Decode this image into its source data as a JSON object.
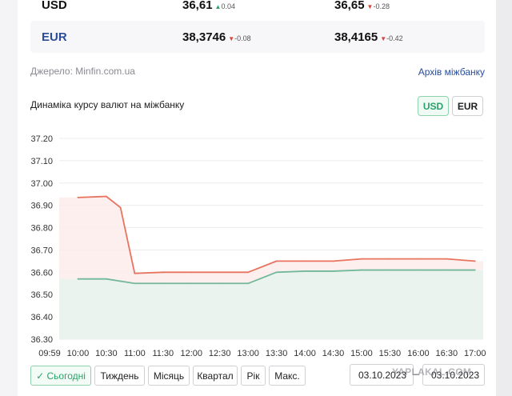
{
  "rates": {
    "usd": {
      "code": "USD",
      "buy": "36,61",
      "buy_change": "0.04",
      "sell": "36,65",
      "sell_change": "-0.28"
    },
    "eur": {
      "code": "EUR",
      "buy": "38,3746",
      "buy_change": "-0.08",
      "sell": "38,4165",
      "sell_change": "-0.42"
    }
  },
  "source_label": "Джерело: Minfin.com.ua",
  "archive_link": "Архів міжбанку",
  "chart_title": "Динаміка курсу валют на міжбанку",
  "currency_toggle": {
    "usd": "USD",
    "eur": "EUR"
  },
  "periods": [
    "✓ Сьогодні",
    "Тиждень",
    "Місяць",
    "Квартал",
    "Рік",
    "Макс."
  ],
  "date_from": "03.10.2023",
  "date_to": "03.10.2023",
  "watermark": "YAPLAKAL.COM",
  "colors": {
    "sell_line": "#e8735e",
    "buy_line": "#72b89a",
    "sell_fill": "#fdecea",
    "buy_fill": "#e8f3ee"
  },
  "chart_data": {
    "type": "area",
    "y_ticks": [
      "37.20",
      "37.10",
      "37.00",
      "36.90",
      "36.80",
      "36.70",
      "36.60",
      "36.50",
      "36.40",
      "36.30"
    ],
    "ylim": [
      36.3,
      37.2
    ],
    "x_ticks": [
      "09:59",
      "10:00",
      "10:30",
      "11:00",
      "11:30",
      "12:00",
      "12:30",
      "13:00",
      "13:30",
      "14:00",
      "14:30",
      "15:00",
      "15:30",
      "16:00",
      "16:30",
      "17:00"
    ],
    "grid": true,
    "legend": "none",
    "series": [
      {
        "key": "sell",
        "x": [
          "10:00",
          "10:30",
          "10:45",
          "11:00",
          "11:30",
          "12:00",
          "12:30",
          "13:00",
          "13:30",
          "14:00",
          "14:30",
          "15:00",
          "15:30",
          "16:00",
          "16:30",
          "17:00"
        ],
        "values": [
          36.935,
          36.94,
          36.89,
          36.595,
          36.6,
          36.6,
          36.6,
          36.6,
          36.65,
          36.65,
          36.65,
          36.66,
          36.66,
          36.66,
          36.66,
          36.65
        ]
      },
      {
        "key": "buy",
        "x": [
          "10:00",
          "10:30",
          "11:00",
          "11:30",
          "12:00",
          "12:30",
          "13:00",
          "13:30",
          "14:00",
          "14:30",
          "15:00",
          "15:30",
          "16:00",
          "16:30",
          "17:00"
        ],
        "values": [
          36.57,
          36.57,
          36.55,
          36.55,
          36.55,
          36.55,
          36.55,
          36.6,
          36.605,
          36.605,
          36.61,
          36.61,
          36.61,
          36.61,
          36.61
        ]
      }
    ]
  }
}
